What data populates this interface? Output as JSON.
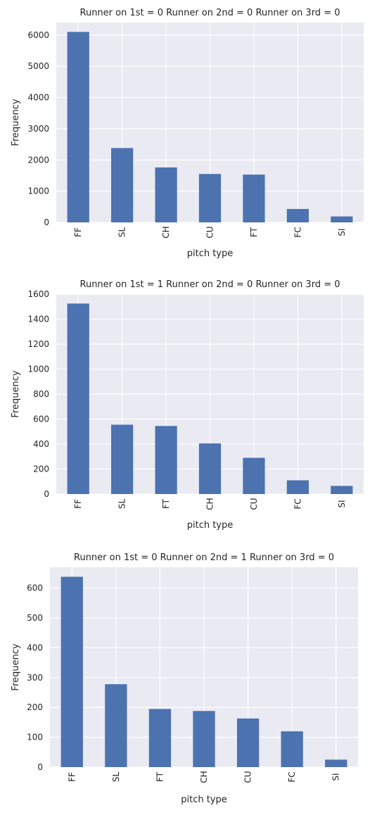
{
  "chart_data": [
    {
      "type": "bar",
      "title": "Runner on 1st = 0  Runner on 2nd = 0  Runner on 3rd = 0",
      "xlabel": "pitch type",
      "ylabel": "Frequency",
      "categories": [
        "FF",
        "SL",
        "CH",
        "CU",
        "FT",
        "FC",
        "SI"
      ],
      "values": [
        6100,
        2380,
        1760,
        1550,
        1530,
        430,
        190
      ],
      "ylim": [
        0,
        6400
      ],
      "yticks": [
        0,
        1000,
        2000,
        3000,
        4000,
        5000,
        6000
      ],
      "grid": true,
      "color": "#4c72b0"
    },
    {
      "type": "bar",
      "title": "Runner on 1st = 1  Runner on 2nd = 0  Runner on 3rd = 0",
      "xlabel": "pitch type",
      "ylabel": "Frequency",
      "categories": [
        "FF",
        "SL",
        "FT",
        "CH",
        "CU",
        "FC",
        "SI"
      ],
      "values": [
        1525,
        555,
        545,
        405,
        290,
        110,
        65
      ],
      "ylim": [
        0,
        1600
      ],
      "yticks": [
        0,
        200,
        400,
        600,
        800,
        1000,
        1200,
        1400,
        1600
      ],
      "grid": true,
      "color": "#4c72b0"
    },
    {
      "type": "bar",
      "title": "Runner on 1st = 0  Runner on 2nd = 1  Runner on 3rd = 0",
      "xlabel": "pitch type",
      "ylabel": "Frequency",
      "categories": [
        "FF",
        "SL",
        "FT",
        "CH",
        "CU",
        "FC",
        "SI"
      ],
      "values": [
        638,
        278,
        195,
        188,
        163,
        120,
        25
      ],
      "ylim": [
        0,
        670
      ],
      "yticks": [
        0,
        100,
        200,
        300,
        400,
        500,
        600
      ],
      "grid": true,
      "color": "#4c72b0"
    }
  ]
}
